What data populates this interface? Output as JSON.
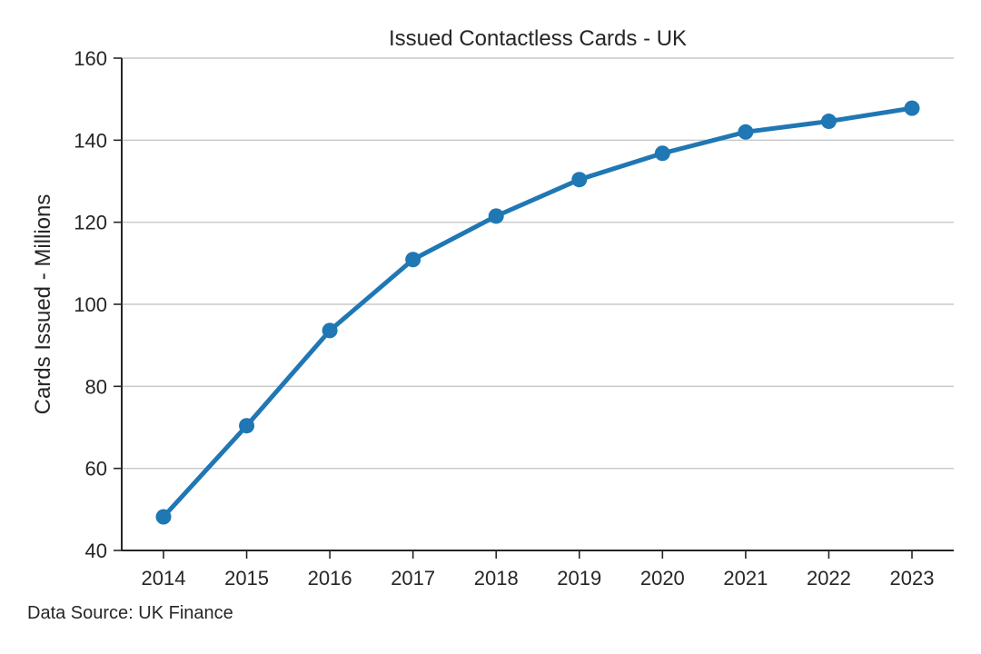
{
  "chart_data": {
    "type": "line",
    "title": "Issued Contactless Cards - UK",
    "xlabel": "",
    "ylabel": "Cards Issued - Millions",
    "x": [
      "2014",
      "2015",
      "2016",
      "2017",
      "2018",
      "2019",
      "2020",
      "2021",
      "2022",
      "2023"
    ],
    "series": [
      {
        "values": [
          48.2,
          70.4,
          93.6,
          110.9,
          121.5,
          130.4,
          136.8,
          142.0,
          144.6,
          147.8
        ],
        "color": "#1f77b4"
      }
    ],
    "ylim": [
      40,
      160
    ],
    "yticks": [
      40,
      60,
      80,
      100,
      120,
      140,
      160
    ],
    "grid": "horizontal",
    "legend": "none"
  },
  "footnote": "Data Source: UK Finance"
}
